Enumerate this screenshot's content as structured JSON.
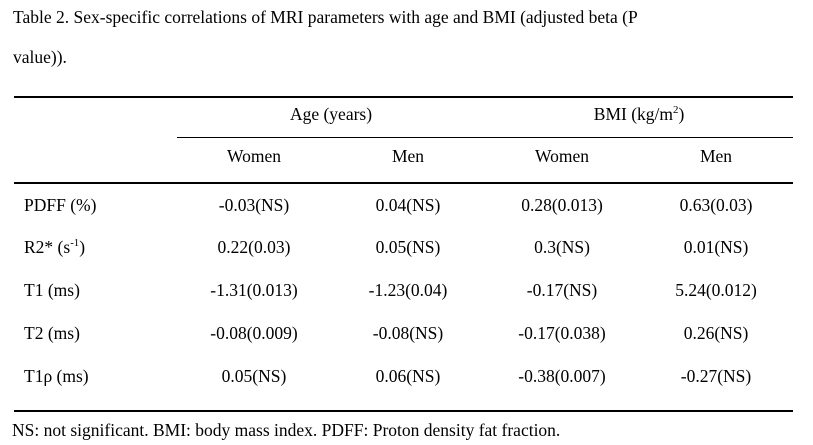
{
  "title": {
    "line1": "Table 2. Sex-specific correlations of MRI parameters with age and BMI (adjusted beta (P",
    "line2": "value))."
  },
  "table": {
    "group_headers": [
      {
        "text": "Age (years)",
        "sup": "",
        "suffix": ""
      },
      {
        "text": "BMI (kg/m",
        "sup": "2",
        "suffix": ")"
      }
    ],
    "column_headers": [
      "Women",
      "Men",
      "Women",
      "Men"
    ],
    "rows": [
      {
        "parameter": {
          "text": "PDFF (%)",
          "sup": "",
          "suffix": ""
        },
        "values": [
          "-0.03(NS)",
          "0.04(NS)",
          "0.28(0.013)",
          "0.63(0.03)"
        ]
      },
      {
        "parameter": {
          "text": "R2* (s",
          "sup": "-1",
          "suffix": ")"
        },
        "values": [
          "0.22(0.03)",
          "0.05(NS)",
          "0.3(NS)",
          "0.01(NS)"
        ]
      },
      {
        "parameter": {
          "text": "T1 (ms)",
          "sup": "",
          "suffix": ""
        },
        "values": [
          "-1.31(0.013)",
          "-1.23(0.04)",
          "-0.17(NS)",
          "5.24(0.012)"
        ]
      },
      {
        "parameter": {
          "text": "T2 (ms)",
          "sup": "",
          "suffix": ""
        },
        "values": [
          "-0.08(0.009)",
          "-0.08(NS)",
          "-0.17(0.038)",
          "0.26(NS)"
        ]
      },
      {
        "parameter": {
          "text": "T1ρ (ms)",
          "sup": "",
          "suffix": ""
        },
        "values": [
          "0.05(NS)",
          "0.06(NS)",
          "-0.38(0.007)",
          "-0.27(NS)"
        ]
      }
    ],
    "footnote": "NS: not significant. BMI: body mass index. PDFF: Proton density fat fraction."
  },
  "colors": {
    "text": "#000000",
    "rule": "#000000",
    "background": "#ffffff"
  }
}
